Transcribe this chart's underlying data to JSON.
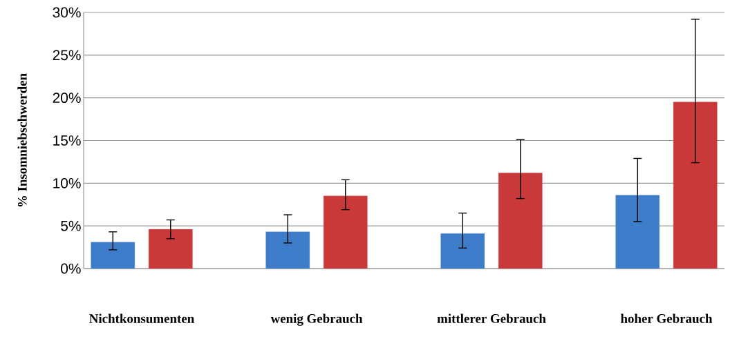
{
  "chart_data": {
    "type": "bar",
    "ylabel": "% Insomniebschwerden",
    "categories": [
      "Nichtkonsumenten",
      "wenig Gebrauch",
      "mittlerer Gebrauch",
      "hoher Gebrauch"
    ],
    "series": [
      {
        "color": "#3d7cc9",
        "values": [
          3.1,
          4.3,
          4.1,
          8.6
        ],
        "errors": [
          [
            2.2,
            4.3
          ],
          [
            3.0,
            6.3
          ],
          [
            2.4,
            6.5
          ],
          [
            5.5,
            12.9
          ]
        ]
      },
      {
        "color": "#c9393a",
        "values": [
          4.6,
          8.5,
          11.2,
          19.5
        ],
        "errors": [
          [
            3.5,
            5.7
          ],
          [
            6.9,
            10.4
          ],
          [
            8.2,
            15.1
          ],
          [
            12.4,
            29.2
          ]
        ]
      }
    ],
    "ylim": [
      0,
      30
    ],
    "yticks": [
      {
        "value": 0,
        "label": "0%"
      },
      {
        "value": 5,
        "label": "5%"
      },
      {
        "value": 10,
        "label": "10%"
      },
      {
        "value": 15,
        "label": "15%"
      },
      {
        "value": 20,
        "label": "20%"
      },
      {
        "value": 25,
        "label": "25%"
      },
      {
        "value": 30,
        "label": "30%"
      }
    ],
    "grid": "y"
  }
}
